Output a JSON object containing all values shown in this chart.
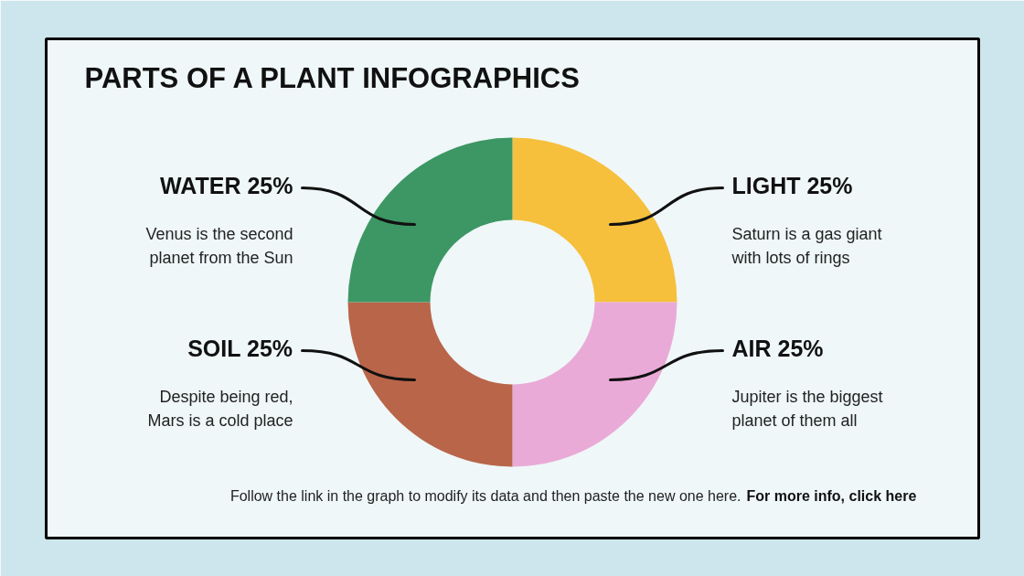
{
  "chart_data": {
    "type": "donut",
    "title": "PARTS OF A PLANT INFOGRAPHICS",
    "categories": [
      "LIGHT",
      "AIR",
      "SOIL",
      "WATER"
    ],
    "values": [
      25,
      25,
      25,
      25
    ],
    "colors": [
      "#f6c03c",
      "#eaaad7",
      "#b9654a",
      "#3d9764"
    ],
    "value_labels": [
      "25%",
      "25%",
      "25%",
      "25%"
    ],
    "annotations": [
      "Saturn is a gas giant with lots of rings",
      "Jupiter is the biggest planet of them all",
      "Despite being red, Mars is a cold place",
      "Venus is the second planet from the Sun",
      "Follow the link in the graph to modify its data and then paste the new one here.",
      "For more info, click here"
    ]
  }
}
